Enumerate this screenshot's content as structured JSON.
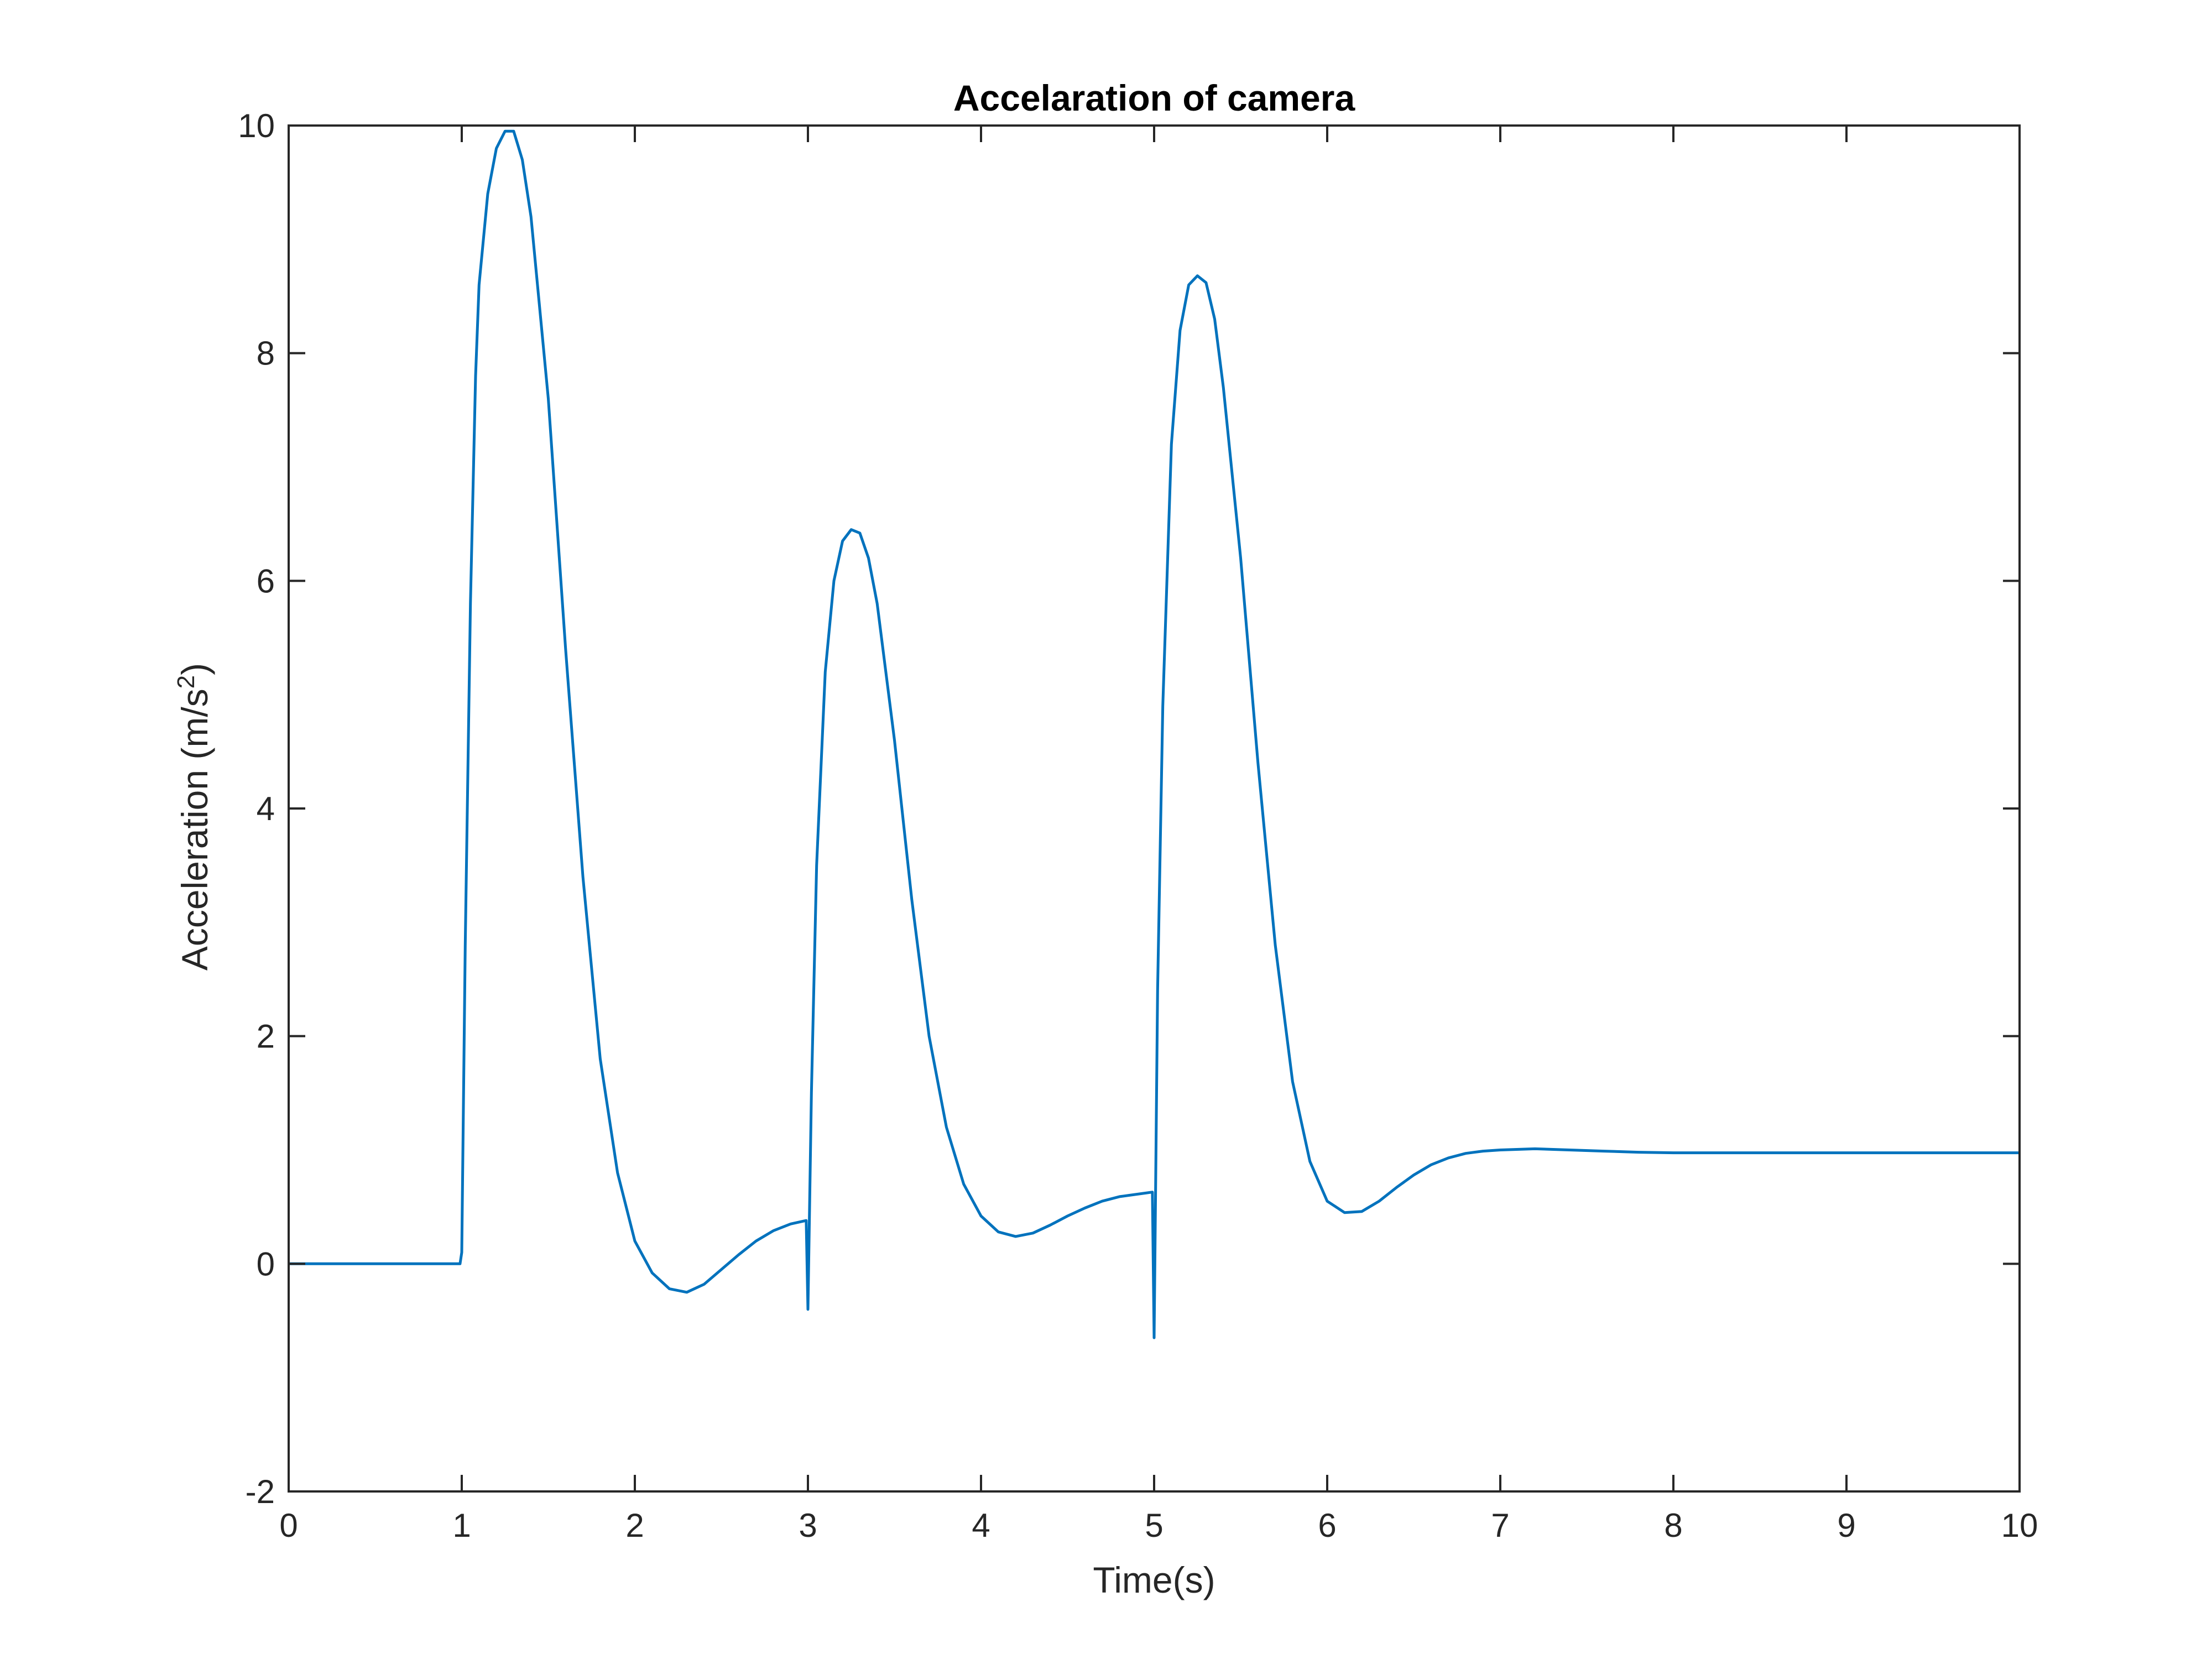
{
  "colors": {
    "line": "#0072BD",
    "axes": "#262626",
    "background": "#ffffff"
  },
  "chart_data": {
    "type": "line",
    "title": "Accelaration of camera",
    "xlabel": "Time(s)",
    "ylabel": "Acceleration (m/s",
    "ylabel_superscript": "2",
    "ylabel_close": ")",
    "xlim": [
      0,
      10
    ],
    "ylim": [
      -2,
      10
    ],
    "xticks": [
      0,
      1,
      2,
      3,
      4,
      5,
      6,
      7,
      8,
      9,
      10
    ],
    "yticks": [
      -2,
      0,
      2,
      4,
      6,
      8,
      10
    ],
    "xtick_labels": [
      "0",
      "1",
      "2",
      "3",
      "4",
      "5",
      "6",
      "7",
      "8",
      "9",
      "10"
    ],
    "ytick_labels": [
      "-2",
      "0",
      "2",
      "4",
      "6",
      "8",
      "10"
    ],
    "grid": false,
    "box": true,
    "series": [
      {
        "x": [
          0,
          0.5,
          0.99,
          1.0,
          1.02,
          1.05,
          1.08,
          1.1,
          1.15,
          1.2,
          1.25,
          1.3,
          1.35,
          1.4,
          1.5,
          1.6,
          1.7,
          1.8,
          1.9,
          2.0,
          2.1,
          2.2,
          2.3,
          2.4,
          2.5,
          2.6,
          2.7,
          2.8,
          2.9,
          2.99,
          3.0,
          3.02,
          3.05,
          3.1,
          3.15,
          3.2,
          3.25,
          3.3,
          3.35,
          3.4,
          3.5,
          3.6,
          3.7,
          3.8,
          3.9,
          4.0,
          4.1,
          4.2,
          4.3,
          4.4,
          4.5,
          4.6,
          4.7,
          4.8,
          4.99,
          5.0,
          5.02,
          5.05,
          5.1,
          5.15,
          5.2,
          5.25,
          5.3,
          5.35,
          5.4,
          5.5,
          5.6,
          5.7,
          5.8,
          5.9,
          6.0,
          6.1,
          6.2,
          6.3,
          6.4,
          6.5,
          6.6,
          6.7,
          6.8,
          6.9,
          7.0,
          7.2,
          7.4,
          7.6,
          7.8,
          8.0,
          8.2,
          8.5,
          9.0,
          9.5,
          10.0
        ],
        "values": [
          0,
          0,
          0,
          0.1,
          2.8,
          5.8,
          7.8,
          8.6,
          9.4,
          9.8,
          9.95,
          9.95,
          9.7,
          9.2,
          7.6,
          5.4,
          3.4,
          1.8,
          0.8,
          0.2,
          -0.08,
          -0.22,
          -0.25,
          -0.18,
          -0.05,
          0.08,
          0.2,
          0.29,
          0.35,
          0.38,
          -0.4,
          1.5,
          3.5,
          5.2,
          6.0,
          6.35,
          6.45,
          6.42,
          6.2,
          5.8,
          4.6,
          3.2,
          2.0,
          1.2,
          0.7,
          0.42,
          0.28,
          0.24,
          0.27,
          0.34,
          0.42,
          0.49,
          0.55,
          0.59,
          0.63,
          -0.65,
          2.4,
          4.9,
          7.2,
          8.2,
          8.6,
          8.68,
          8.62,
          8.3,
          7.7,
          6.2,
          4.4,
          2.8,
          1.6,
          0.9,
          0.55,
          0.45,
          0.46,
          0.55,
          0.67,
          0.78,
          0.87,
          0.93,
          0.97,
          0.99,
          1.0,
          1.01,
          1.0,
          0.99,
          0.98,
          0.975,
          0.975,
          0.975,
          0.975,
          0.975,
          0.975
        ]
      }
    ]
  }
}
